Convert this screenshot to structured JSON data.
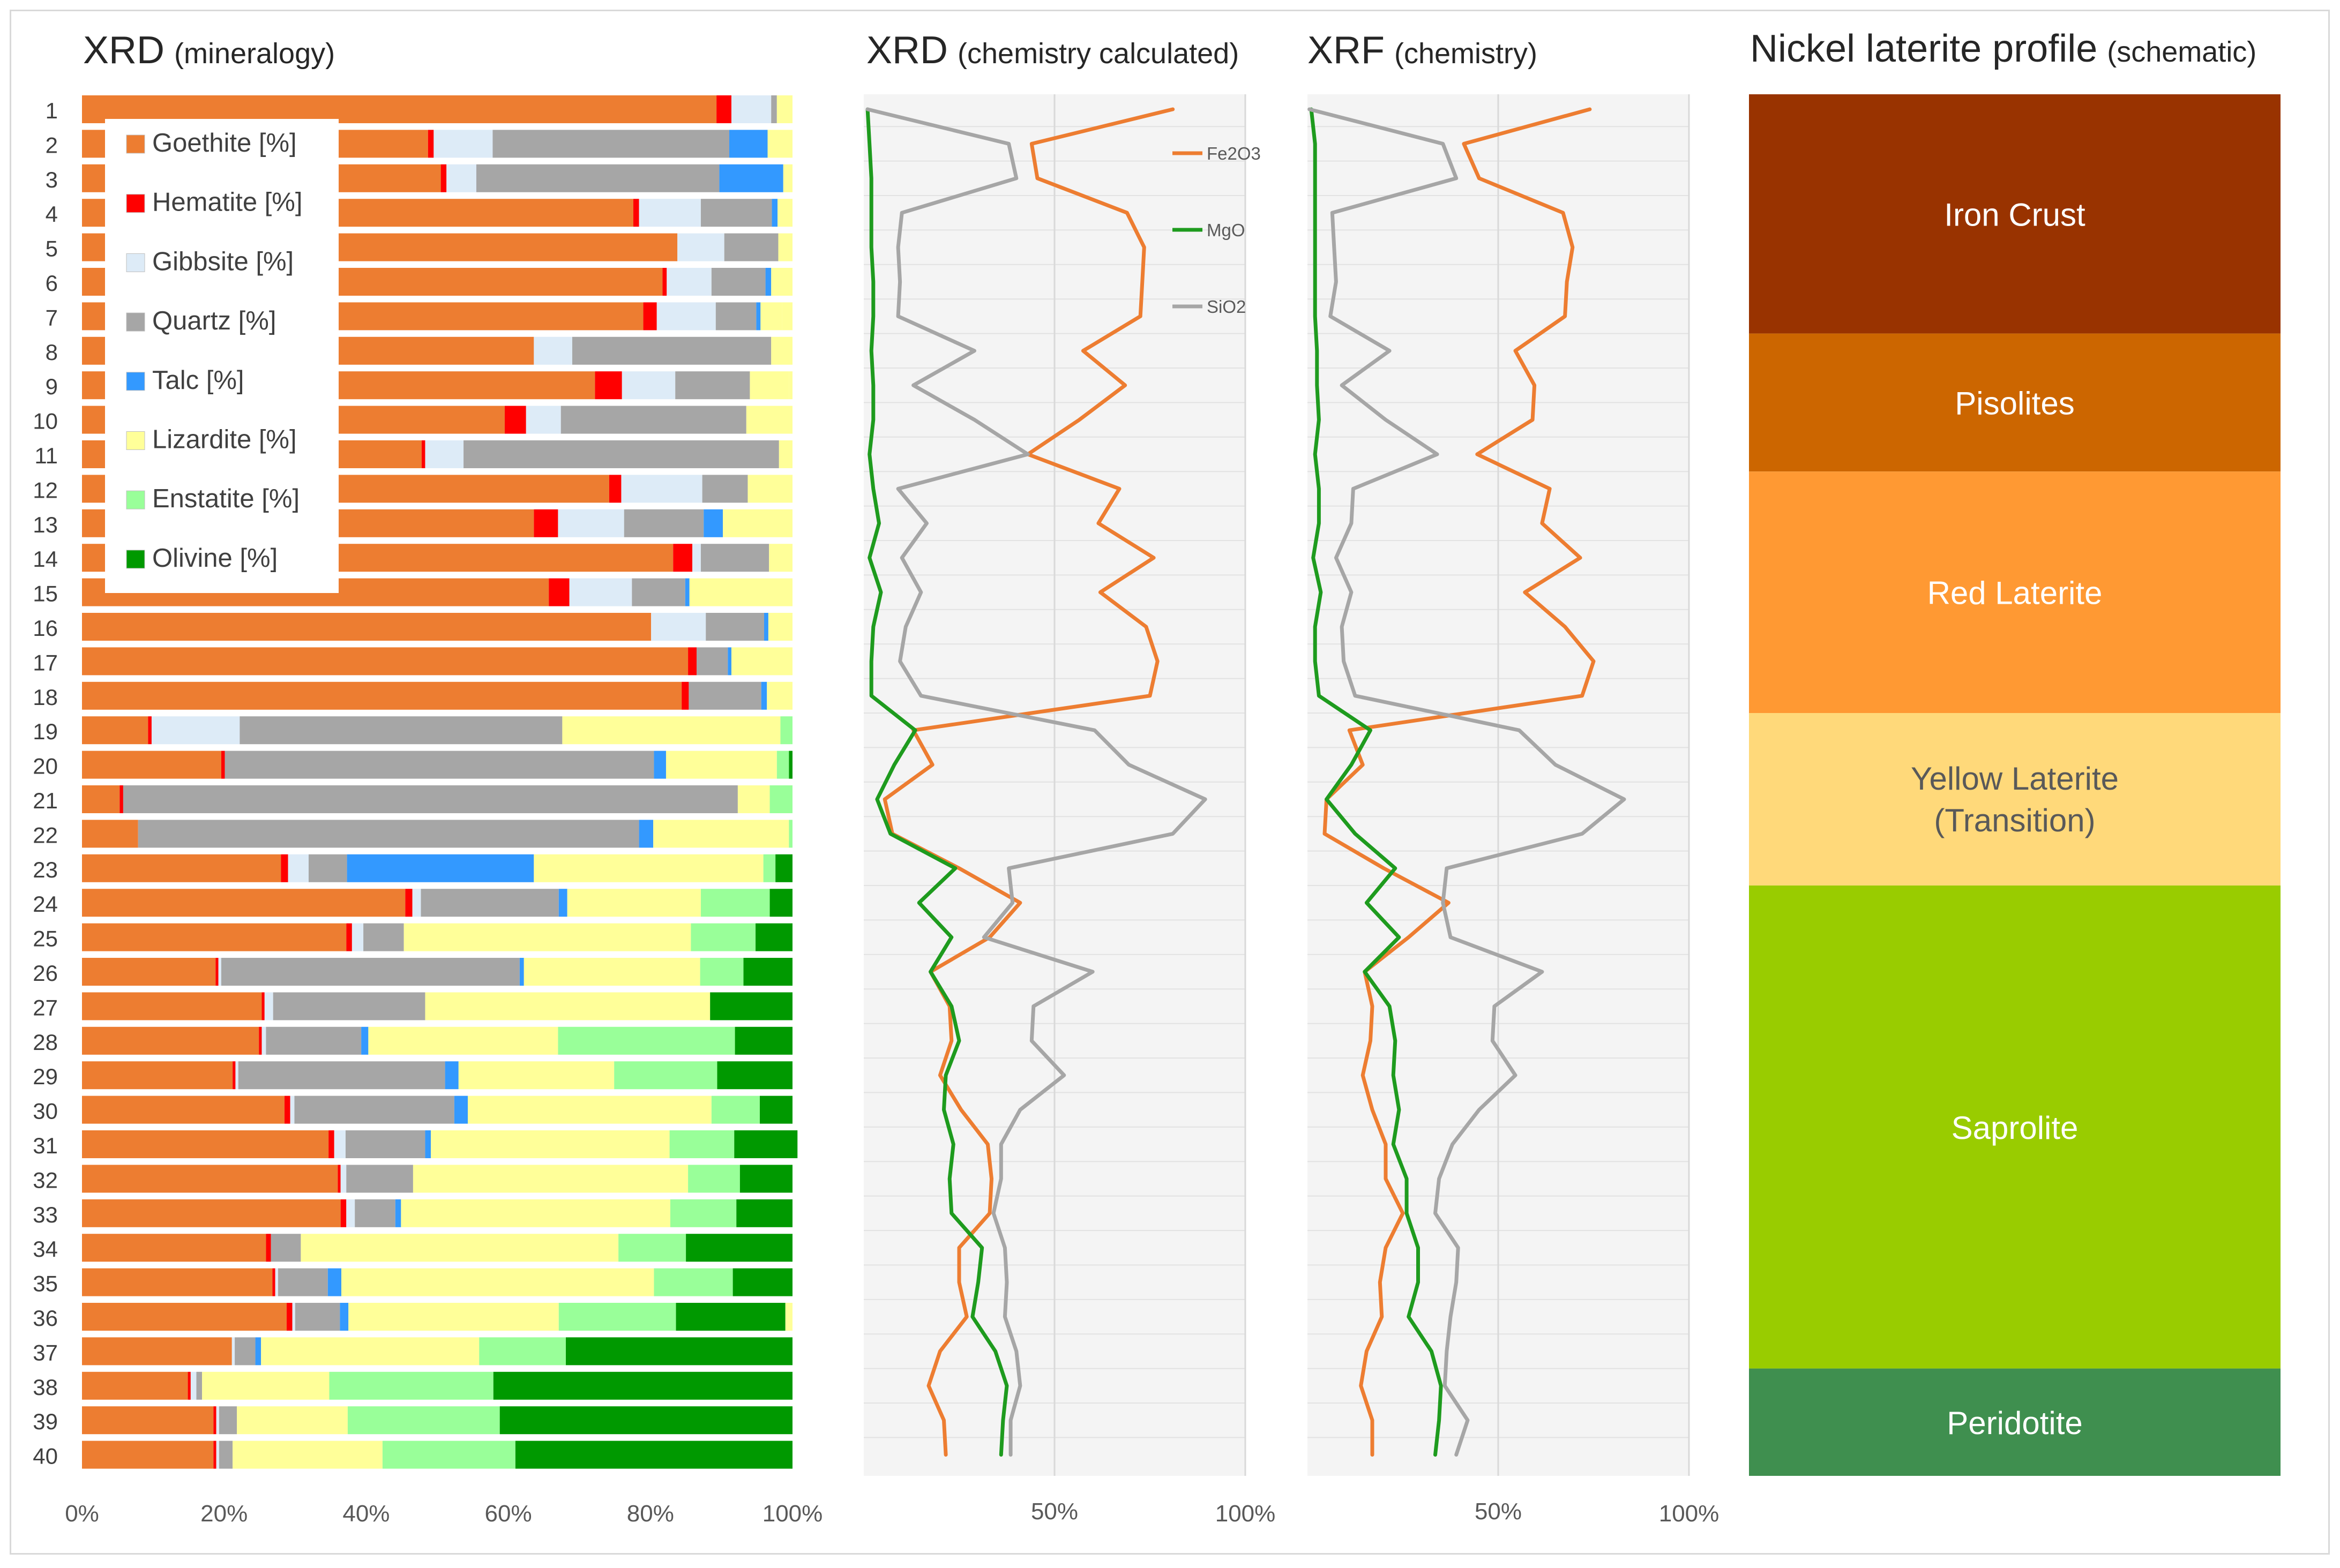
{
  "titles": {
    "xrd_main": "XRD",
    "xrd_sub": "(mineralogy)",
    "calc_main": "XRD",
    "calc_sub": "(chemistry calculated)",
    "xrf_main": "XRF",
    "xrf_sub": "(chemistry)",
    "profile_main": "Nickel laterite profile",
    "profile_sub": "(schematic)"
  },
  "colors": {
    "Goethite": "#ED7D31",
    "Hematite": "#FF0000",
    "Gibbsite": "#DDEBF7",
    "Quartz": "#A6A6A6",
    "Talc": "#3399FF",
    "Lizardite": "#FFFF99",
    "Enstatite": "#99FF99",
    "Olivine": "#009900",
    "Fe2O3": "#ED7D31",
    "MgO": "#1E9B1E",
    "SiO2": "#A6A6A6"
  },
  "chart_data": [
    {
      "type": "bar",
      "stacked": true,
      "orientation": "horizontal",
      "title": "XRD (mineralogy)",
      "categories": [
        "1",
        "2",
        "3",
        "4",
        "5",
        "6",
        "7",
        "8",
        "9",
        "10",
        "11",
        "12",
        "13",
        "14",
        "15",
        "16",
        "17",
        "18",
        "19",
        "20",
        "21",
        "22",
        "23",
        "24",
        "25",
        "26",
        "27",
        "28",
        "29",
        "30",
        "31",
        "32",
        "33",
        "34",
        "35",
        "36",
        "37",
        "38",
        "39",
        "40"
      ],
      "x_ticks": [
        "0%",
        "20%",
        "40%",
        "60%",
        "80%",
        "100%"
      ],
      "xlim": [
        0,
        100
      ],
      "legend_position": "top-left",
      "series": [
        {
          "name": "Goethite [%]",
          "key": "Goethite",
          "values": [
            89.3,
            48.7,
            50.5,
            77.6,
            83.8,
            81.7,
            79.0,
            63.6,
            72.2,
            59.5,
            47.8,
            74.2,
            63.6,
            83.2,
            65.7,
            80.1,
            85.3,
            84.4,
            9.3,
            19.6,
            5.3,
            7.9,
            28.0,
            45.5,
            37.2,
            18.8,
            25.3,
            24.9,
            21.2,
            28.5,
            34.7,
            36.0,
            36.4,
            25.9,
            26.8,
            28.8,
            21.1,
            14.9,
            18.5,
            18.5
          ]
        },
        {
          "name": "Hematite [%]",
          "key": "Hematite",
          "values": [
            2.1,
            0.8,
            0.8,
            0.8,
            0.0,
            0.6,
            1.9,
            0.0,
            3.8,
            3.0,
            0.5,
            1.7,
            3.4,
            2.7,
            2.9,
            0.0,
            1.2,
            1.0,
            0.5,
            0.5,
            0.5,
            0.0,
            1.0,
            1.0,
            0.8,
            0.4,
            0.4,
            0.4,
            0.4,
            0.8,
            0.8,
            0.4,
            0.8,
            0.7,
            0.4,
            0.8,
            0.0,
            0.4,
            0.4,
            0.4
          ]
        },
        {
          "name": "Gibbsite [%]",
          "key": "Gibbsite",
          "values": [
            5.6,
            8.3,
            4.2,
            8.7,
            6.6,
            6.3,
            8.3,
            5.4,
            7.5,
            4.9,
            5.4,
            11.4,
            9.3,
            1.2,
            8.8,
            7.7,
            0.0,
            0.0,
            12.4,
            0.0,
            0.0,
            0.0,
            2.9,
            1.2,
            1.6,
            0.4,
            1.2,
            0.6,
            0.4,
            0.6,
            1.6,
            0.8,
            1.2,
            0.0,
            0.4,
            0.4,
            0.4,
            0.8,
            0.4,
            0.4
          ]
        },
        {
          "name": "Quartz [%]",
          "key": "Quartz",
          "values": [
            0.8,
            33.3,
            34.2,
            10.0,
            7.6,
            7.6,
            5.7,
            28.0,
            10.5,
            26.1,
            44.4,
            6.4,
            11.2,
            9.6,
            7.5,
            8.2,
            4.4,
            10.2,
            45.4,
            60.4,
            86.5,
            70.5,
            5.4,
            19.4,
            5.7,
            42.0,
            21.4,
            13.4,
            29.1,
            22.5,
            11.2,
            9.4,
            5.7,
            4.2,
            7.0,
            6.3,
            2.9,
            0.8,
            2.5,
            1.9
          ]
        },
        {
          "name": "Talc [%]",
          "key": "Talc",
          "values": [
            0.0,
            5.4,
            9.0,
            0.8,
            0.0,
            0.8,
            0.6,
            0.0,
            0.0,
            0.0,
            0.0,
            0.0,
            2.7,
            0.0,
            0.6,
            0.6,
            0.5,
            0.8,
            0.0,
            1.7,
            0.0,
            2.0,
            26.3,
            1.2,
            0.0,
            0.6,
            0.0,
            1.0,
            1.9,
            1.9,
            0.8,
            0.0,
            0.8,
            0.0,
            1.9,
            1.2,
            0.8,
            0.0,
            0.0,
            0.0
          ]
        },
        {
          "name": "Lizardite [%]",
          "key": "Lizardite",
          "values": [
            2.2,
            3.5,
            1.3,
            2.1,
            2.0,
            3.0,
            3.0,
            3.0,
            5.5,
            6.5,
            1.9,
            6.0,
            9.8,
            3.3,
            14.5,
            3.4,
            8.6,
            3.6,
            30.7,
            15.6,
            4.5,
            19.1,
            32.3,
            18.8,
            40.4,
            24.8,
            40.1,
            26.7,
            21.9,
            34.3,
            33.6,
            38.7,
            37.9,
            44.7,
            44.0,
            29.6,
            30.7,
            17.9,
            15.6,
            21.1
          ]
        },
        {
          "name": "Enstatite [%]",
          "key": "Enstatite",
          "values": [
            0.0,
            0.0,
            0.0,
            0.0,
            0.0,
            0.0,
            0.0,
            0.0,
            0.0,
            0.0,
            0.0,
            0.0,
            0.0,
            0.0,
            0.0,
            0.0,
            0.0,
            0.0,
            1.7,
            1.7,
            3.2,
            0.5,
            1.7,
            9.7,
            9.1,
            6.1,
            0.0,
            24.9,
            14.5,
            6.8,
            9.1,
            7.3,
            9.3,
            9.5,
            11.1,
            16.5,
            12.2,
            23.1,
            21.4,
            18.7
          ]
        },
        {
          "name": "Olivine [%]",
          "key": "Olivine",
          "values": [
            0.0,
            0.0,
            0.0,
            0.0,
            0.0,
            0.0,
            0.0,
            0.0,
            0.0,
            0.0,
            0.0,
            0.0,
            0.0,
            0.0,
            0.0,
            0.0,
            0.0,
            0.0,
            0.0,
            0.5,
            0.0,
            0.0,
            2.4,
            3.2,
            5.2,
            6.9,
            11.6,
            8.1,
            10.6,
            4.6,
            8.9,
            7.4,
            7.9,
            15.0,
            8.4,
            15.4,
            31.9,
            42.1,
            41.2,
            39.0
          ]
        }
      ]
    },
    {
      "type": "line",
      "title": "XRD (chemistry calculated)",
      "x_ticks": [
        "50%",
        "100%"
      ],
      "xlim": [
        0,
        100
      ],
      "legend_position": "top-right",
      "samples": [
        1,
        2,
        3,
        4,
        5,
        6,
        7,
        8,
        9,
        10,
        11,
        12,
        13,
        14,
        15,
        16,
        17,
        18,
        19,
        20,
        21,
        22,
        23,
        24,
        25,
        26,
        27,
        28,
        29,
        30,
        31,
        32,
        33,
        34,
        35,
        36,
        37,
        38,
        39,
        40
      ],
      "series": [
        {
          "name": "Fe2O3",
          "key": "Fe2O3",
          "values": [
            81.0,
            44.0,
            45.5,
            69.0,
            73.5,
            73.0,
            72.5,
            57.5,
            68.5,
            56.5,
            43.0,
            67.0,
            61.5,
            76.0,
            62.0,
            74.0,
            77.0,
            75.0,
            13.0,
            18.0,
            5.5,
            7.5,
            25.0,
            41.0,
            33.0,
            17.5,
            22.5,
            23.0,
            20.0,
            25.5,
            32.5,
            33.5,
            33.0,
            25.0,
            25.0,
            27.0,
            20.0,
            17.0,
            21.0,
            21.5
          ]
        },
        {
          "name": "MgO",
          "key": "MgO",
          "values": [
            1.0,
            1.5,
            2.0,
            2.0,
            2.0,
            2.5,
            2.5,
            2.0,
            2.5,
            2.5,
            1.5,
            2.5,
            4.0,
            1.5,
            4.5,
            2.5,
            2.0,
            2.0,
            13.5,
            8.0,
            3.5,
            7.0,
            24.0,
            14.5,
            23.0,
            17.5,
            23.0,
            25.0,
            21.5,
            21.0,
            23.5,
            22.5,
            23.0,
            31.0,
            30.0,
            28.5,
            34.5,
            37.5,
            36.5,
            36.0
          ]
        },
        {
          "name": "SiO2",
          "key": "SiO2",
          "values": [
            1.0,
            38.0,
            40.0,
            10.0,
            9.0,
            9.5,
            9.0,
            29.0,
            13.0,
            29.0,
            43.0,
            9.0,
            16.5,
            10.0,
            15.0,
            11.0,
            9.5,
            15.0,
            60.5,
            69.5,
            89.5,
            81.0,
            38.0,
            39.0,
            31.5,
            60.0,
            44.5,
            44.0,
            52.5,
            41.0,
            36.0,
            36.0,
            34.0,
            37.0,
            37.5,
            37.0,
            40.0,
            41.0,
            38.5,
            38.5
          ]
        }
      ]
    },
    {
      "type": "line",
      "title": "XRF (chemistry)",
      "x_ticks": [
        "50%",
        "100%"
      ],
      "xlim": [
        0,
        100
      ],
      "samples": [
        1,
        2,
        3,
        4,
        5,
        6,
        7,
        8,
        9,
        10,
        11,
        12,
        13,
        14,
        15,
        16,
        17,
        18,
        19,
        20,
        21,
        22,
        23,
        24,
        25,
        26,
        27,
        28,
        29,
        30,
        31,
        32,
        33,
        34,
        35,
        36,
        37,
        38,
        39,
        40
      ],
      "series": [
        {
          "name": "Fe2O3",
          "key": "Fe2O3",
          "values": [
            74.0,
            41.0,
            45.0,
            67.0,
            69.5,
            68.0,
            67.5,
            54.5,
            59.5,
            59.0,
            44.5,
            63.5,
            61.5,
            71.5,
            57.0,
            67.5,
            75.0,
            72.0,
            11.0,
            14.5,
            5.0,
            4.5,
            20.0,
            37.0,
            26.5,
            15.0,
            17.0,
            16.5,
            14.5,
            17.0,
            20.5,
            20.5,
            25.0,
            20.5,
            19.0,
            19.5,
            15.5,
            14.0,
            17.0,
            17.0
          ]
        },
        {
          "name": "MgO",
          "key": "MgO",
          "values": [
            1.0,
            2.0,
            2.0,
            2.0,
            2.0,
            2.0,
            2.0,
            2.5,
            2.5,
            3.0,
            2.0,
            3.0,
            3.0,
            1.5,
            3.5,
            2.0,
            2.0,
            3.0,
            16.5,
            11.5,
            5.0,
            12.5,
            23.0,
            15.5,
            24.0,
            15.0,
            21.5,
            23.0,
            22.5,
            24.0,
            22.5,
            26.0,
            26.0,
            29.0,
            29.0,
            26.5,
            32.5,
            35.0,
            34.5,
            33.5
          ]
        },
        {
          "name": "SiO2",
          "key": "SiO2",
          "values": [
            0.5,
            35.5,
            39.0,
            6.5,
            7.0,
            7.5,
            6.0,
            21.5,
            9.0,
            20.5,
            34.0,
            12.0,
            11.5,
            7.5,
            11.5,
            9.0,
            9.5,
            12.5,
            55.5,
            65.0,
            83.0,
            72.0,
            36.5,
            35.5,
            37.5,
            61.5,
            49.0,
            48.5,
            54.5,
            45.0,
            38.0,
            34.5,
            33.5,
            39.5,
            39.0,
            37.5,
            36.5,
            36.0,
            42.0,
            39.0
          ]
        }
      ]
    }
  ],
  "legend_labels": [
    "Goethite [%]",
    "Hematite [%]",
    "Gibbsite [%]",
    "Quartz [%]",
    "Talc [%]",
    "Lizardite [%]",
    "Enstatite [%]",
    "Olivine [%]"
  ],
  "line_legend_labels": [
    "Fe2O3",
    "MgO",
    "SiO2"
  ],
  "profile": [
    {
      "label": "Iron Crust",
      "line2": "",
      "color": "#993300",
      "text_color": "#ffffff",
      "from_row": 1,
      "to_row": 7
    },
    {
      "label": "Pisolites",
      "line2": "",
      "color": "#CC6600",
      "text_color": "#ffffff",
      "from_row": 8,
      "to_row": 11
    },
    {
      "label": "Red Laterite",
      "line2": "",
      "color": "#FF9933",
      "text_color": "#ffffff",
      "from_row": 12,
      "to_row": 18
    },
    {
      "label": "Yellow Laterite",
      "line2": "(Transition)",
      "color": "#FFD97A",
      "text_color": "#595959",
      "from_row": 19,
      "to_row": 23
    },
    {
      "label": "Saprolite",
      "line2": "",
      "color": "#99CC00",
      "text_color": "#ffffff",
      "from_row": 24,
      "to_row": 37
    },
    {
      "label": "Peridotite",
      "line2": "",
      "color": "#3F8F4F",
      "text_color": "#ffffff",
      "from_row": 38,
      "to_row": 40
    }
  ]
}
